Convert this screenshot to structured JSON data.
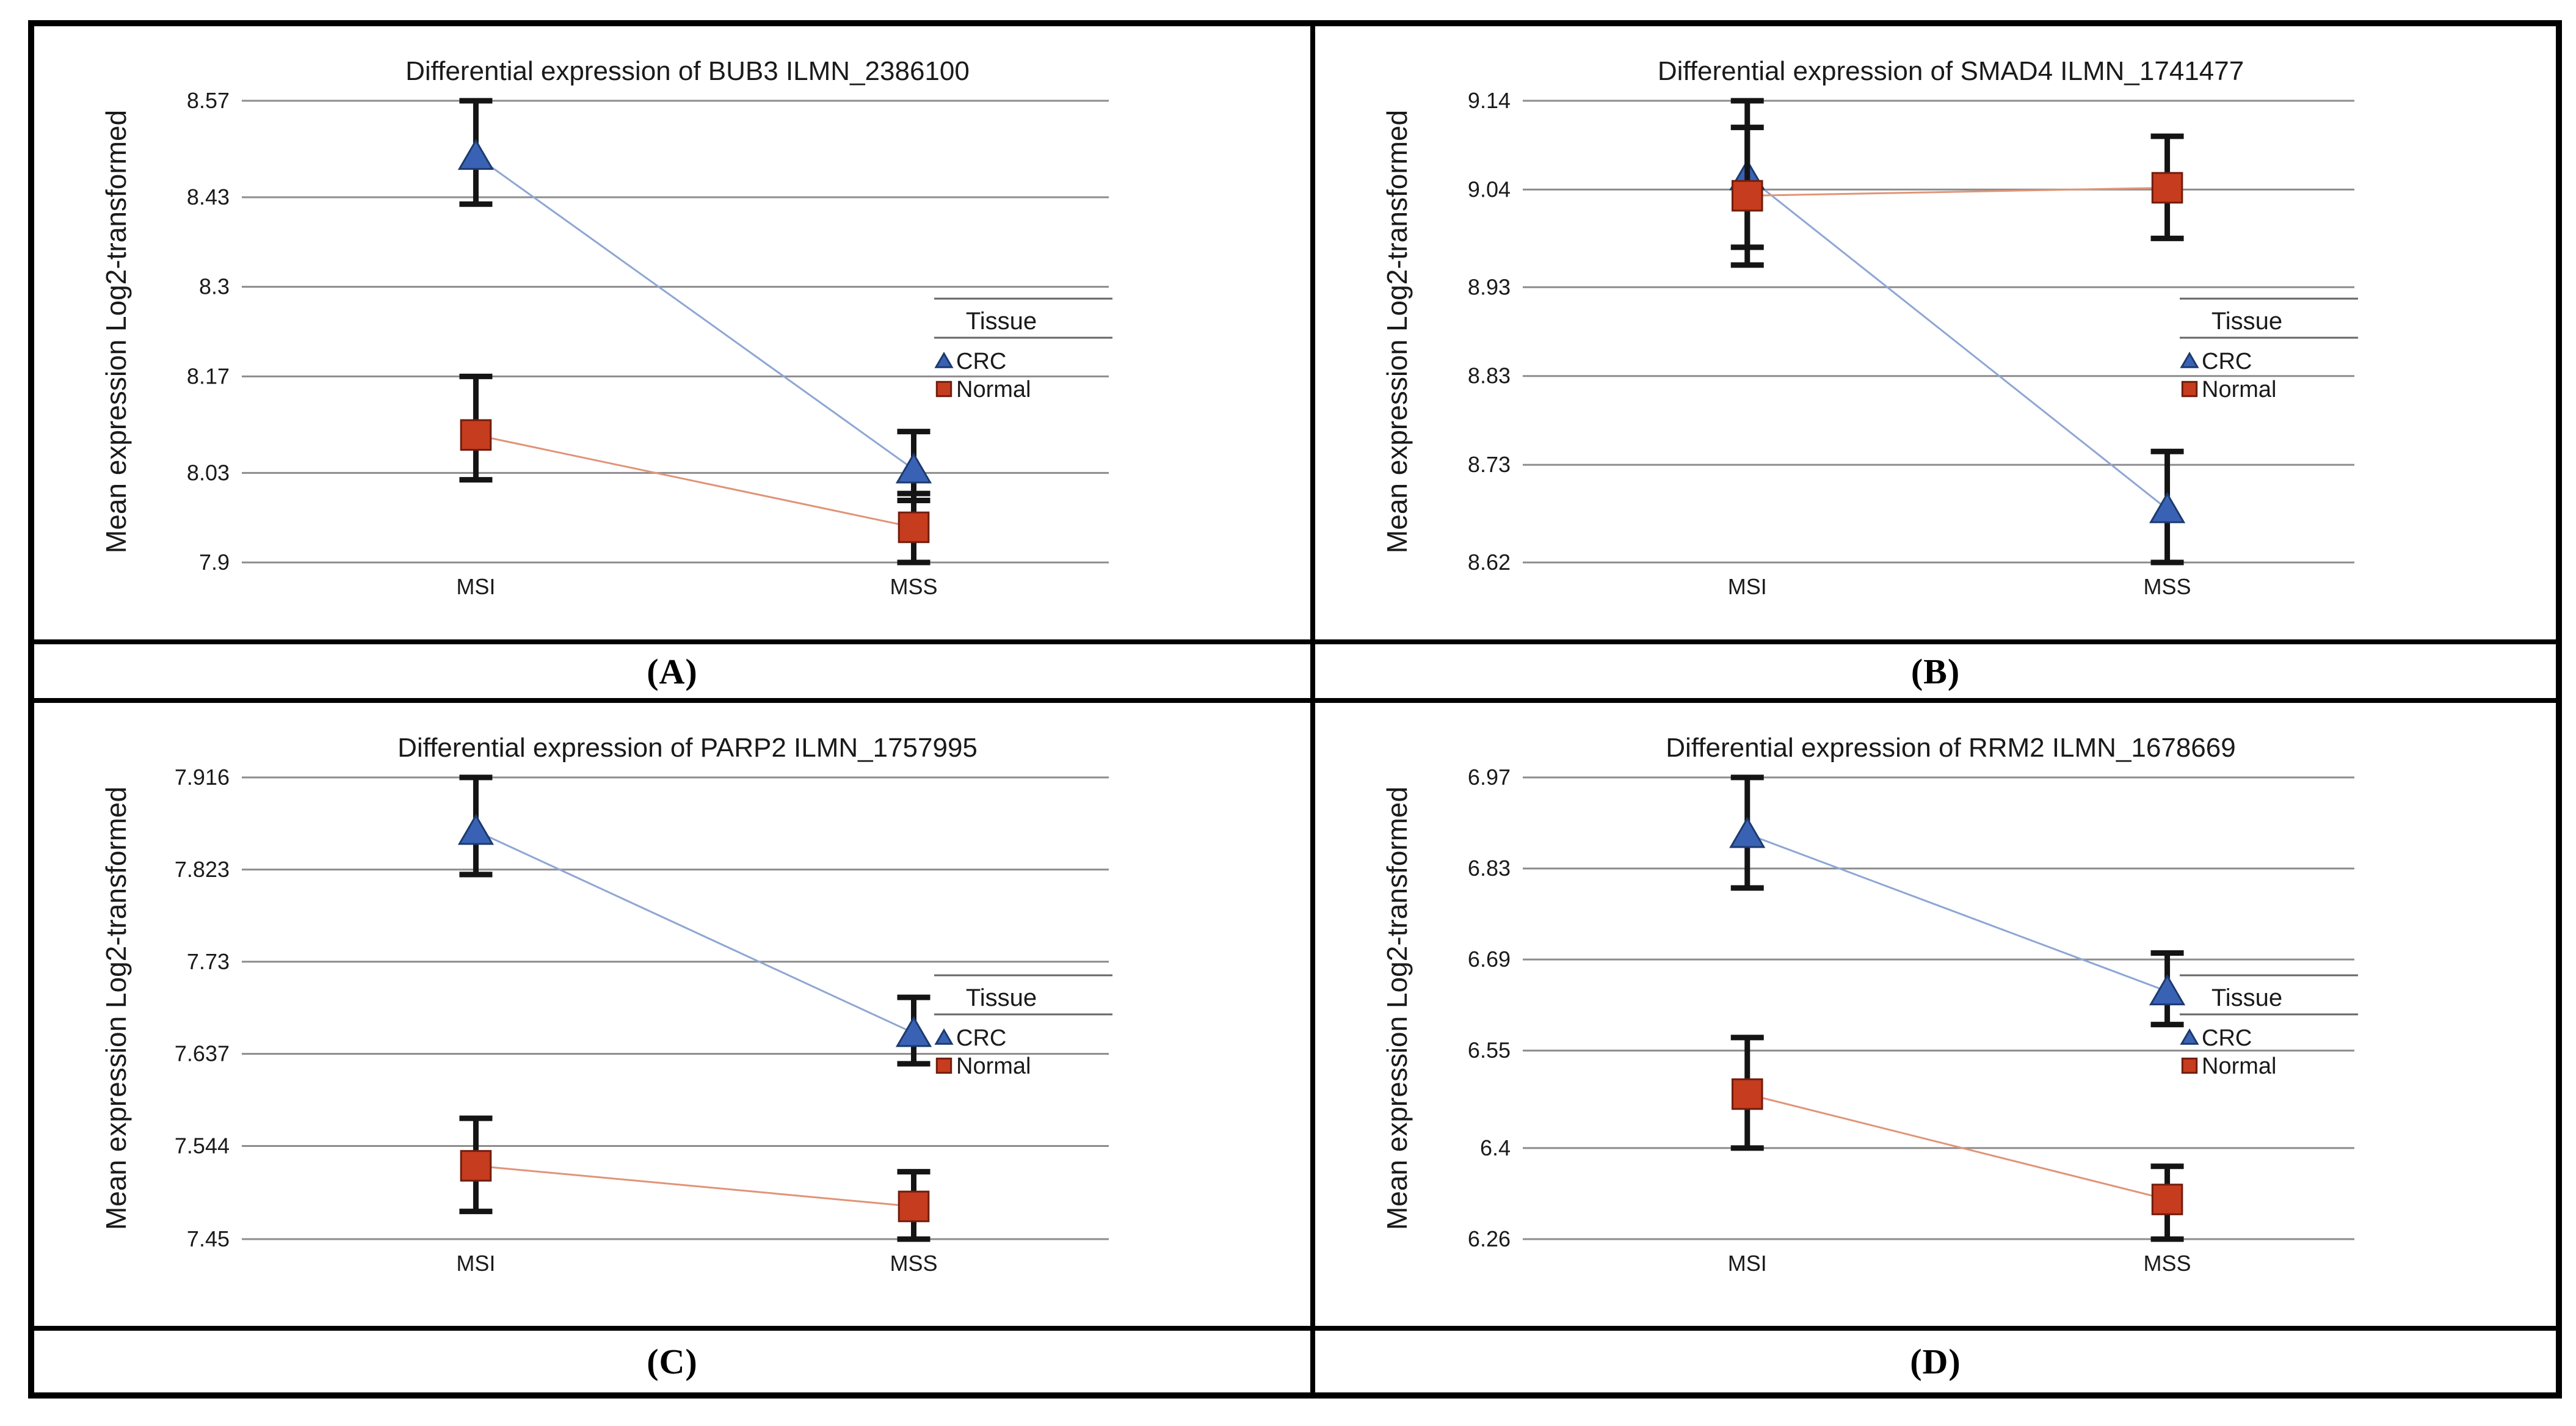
{
  "shared": {
    "y_axis_label": "Mean expression Log2-transformed",
    "categories": [
      "MSI",
      "MSS"
    ],
    "legend": {
      "title": "Tissue",
      "entries": [
        {
          "label": "CRC",
          "marker": "triangle"
        },
        {
          "label": "Normal",
          "marker": "square"
        }
      ]
    }
  },
  "colors": {
    "crc_marker": "#3a62b4",
    "crc_marker_edge": "#1c3a6e",
    "crc_line": "#8ea6d4",
    "normal_marker": "#c63c1e",
    "normal_marker_edge": "#701d0e",
    "normal_line": "#e09478",
    "gridline": "#8c8c8c",
    "error_bar": "#141414",
    "text": "#1a1a1a",
    "legend_rule": "#666666"
  },
  "chart_data": [
    {
      "type": "line",
      "panel_label": "(A)",
      "title": "Differential expression of BUB3 ILMN_2386100",
      "xlabel": "",
      "ylabel": "Mean expression Log2-transformed",
      "categories": [
        "MSI",
        "MSS"
      ],
      "ylim": [
        7.9,
        8.57
      ],
      "yticks": [
        {
          "label": "8.57",
          "value": 8.57
        },
        {
          "label": "8.43",
          "value": 8.43
        },
        {
          "label": "8.3",
          "value": 8.3
        },
        {
          "label": "8.17",
          "value": 8.17
        },
        {
          "label": "8.03",
          "value": 8.03
        },
        {
          "label": "7.9",
          "value": 7.9
        }
      ],
      "grid": true,
      "legend_position": "right",
      "series": [
        {
          "name": "CRC",
          "marker": "triangle",
          "values": [
            8.49,
            8.035
          ],
          "err_lo": [
            8.42,
            7.99
          ],
          "err_hi": [
            8.57,
            8.09
          ]
        },
        {
          "name": "Normal",
          "marker": "square",
          "values": [
            8.085,
            7.951
          ],
          "err_lo": [
            8.02,
            7.9
          ],
          "err_hi": [
            8.17,
            8.0
          ]
        }
      ]
    },
    {
      "type": "line",
      "panel_label": "(B)",
      "title": "Differential expression of SMAD4 ILMN_1741477",
      "xlabel": "",
      "ylabel": "Mean expression Log2-transformed",
      "categories": [
        "MSI",
        "MSS"
      ],
      "ylim": [
        8.62,
        9.14
      ],
      "yticks": [
        {
          "label": "9.14",
          "value": 9.14
        },
        {
          "label": "9.04",
          "value": 9.04
        },
        {
          "label": "8.93",
          "value": 8.93
        },
        {
          "label": "8.83",
          "value": 8.83
        },
        {
          "label": "8.73",
          "value": 8.73
        },
        {
          "label": "8.62",
          "value": 8.62
        }
      ],
      "grid": true,
      "legend_position": "right",
      "series": [
        {
          "name": "CRC",
          "marker": "triangle",
          "values": [
            9.055,
            8.68
          ],
          "err_lo": [
            8.955,
            8.62
          ],
          "err_hi": [
            9.14,
            8.745
          ]
        },
        {
          "name": "Normal",
          "marker": "square",
          "values": [
            9.033,
            9.042
          ],
          "err_lo": [
            8.975,
            8.985
          ],
          "err_hi": [
            9.11,
            9.1
          ]
        }
      ]
    },
    {
      "type": "line",
      "panel_label": "(C)",
      "title": "Differential expression of PARP2 ILMN_1757995",
      "xlabel": "",
      "ylabel": "Mean expression Log2-transformed",
      "categories": [
        "MSI",
        "MSS"
      ],
      "ylim": [
        7.45,
        7.916
      ],
      "yticks": [
        {
          "label": "7.916",
          "value": 7.916
        },
        {
          "label": "7.823",
          "value": 7.823
        },
        {
          "label": "7.73",
          "value": 7.73
        },
        {
          "label": "7.637",
          "value": 7.637
        },
        {
          "label": "7.544",
          "value": 7.544
        },
        {
          "label": "7.45",
          "value": 7.45
        }
      ],
      "grid": true,
      "legend_position": "right",
      "series": [
        {
          "name": "CRC",
          "marker": "triangle",
          "values": [
            7.862,
            7.658
          ],
          "err_lo": [
            7.818,
            7.627
          ],
          "err_hi": [
            7.916,
            7.694
          ]
        },
        {
          "name": "Normal",
          "marker": "square",
          "values": [
            7.524,
            7.483
          ],
          "err_lo": [
            7.478,
            7.45
          ],
          "err_hi": [
            7.572,
            7.518
          ]
        }
      ]
    },
    {
      "type": "line",
      "panel_label": "(D)",
      "title": "Differential expression of RRM2 ILMN_1678669",
      "xlabel": "",
      "ylabel": "Mean expression Log2-transformed",
      "categories": [
        "MSI",
        "MSS"
      ],
      "ylim": [
        6.26,
        6.97
      ],
      "yticks": [
        {
          "label": "6.97",
          "value": 6.97
        },
        {
          "label": "6.83",
          "value": 6.83
        },
        {
          "label": "6.69",
          "value": 6.69
        },
        {
          "label": "6.55",
          "value": 6.55
        },
        {
          "label": "6.4",
          "value": 6.4
        },
        {
          "label": "6.26",
          "value": 6.26
        }
      ],
      "grid": true,
      "legend_position": "right",
      "series": [
        {
          "name": "CRC",
          "marker": "triangle",
          "values": [
            6.883,
            6.641
          ],
          "err_lo": [
            6.8,
            6.59
          ],
          "err_hi": [
            6.97,
            6.7
          ]
        },
        {
          "name": "Normal",
          "marker": "square",
          "values": [
            6.483,
            6.321
          ],
          "err_lo": [
            6.4,
            6.26
          ],
          "err_hi": [
            6.57,
            6.372
          ]
        }
      ]
    }
  ]
}
